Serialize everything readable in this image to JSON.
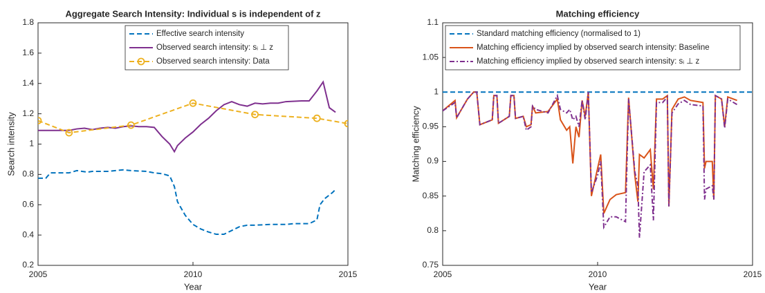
{
  "chart_data": [
    {
      "type": "line",
      "title": "Aggregate Search Intensity: Individual s is independent of z",
      "xlabel": "Year",
      "ylabel": "Search intensity",
      "xlim": [
        2005,
        2015
      ],
      "xticks": [
        2005,
        2010,
        2015
      ],
      "ylim": [
        0.2,
        1.8
      ],
      "yticks": [
        0.2,
        0.4,
        0.6,
        0.8,
        1,
        1.2,
        1.4,
        1.6,
        1.8
      ],
      "grid": false,
      "legend": "north",
      "series": [
        {
          "name": "Effective search intensity",
          "color": "#0072bd",
          "style": "dashed",
          "x": [
            2005,
            2005.25,
            2005.4,
            2006,
            2006.25,
            2006.6,
            2006.75,
            2007,
            2007.25,
            2007.5,
            2007.75,
            2008,
            2008.5,
            2008.75,
            2009,
            2009.25,
            2009.4,
            2009.5,
            2009.75,
            2010,
            2010.25,
            2010.5,
            2010.75,
            2011,
            2011.25,
            2011.5,
            2011.75,
            2012,
            2012.5,
            2013,
            2013.25,
            2013.75,
            2014,
            2014.1,
            2014.25,
            2014.5,
            2014.6
          ],
          "values": [
            0.775,
            0.775,
            0.81,
            0.81,
            0.825,
            0.815,
            0.82,
            0.82,
            0.82,
            0.825,
            0.83,
            0.825,
            0.82,
            0.81,
            0.805,
            0.79,
            0.72,
            0.62,
            0.53,
            0.47,
            0.44,
            0.42,
            0.405,
            0.405,
            0.43,
            0.455,
            0.465,
            0.465,
            0.47,
            0.47,
            0.475,
            0.475,
            0.5,
            0.6,
            0.64,
            0.68,
            0.7
          ]
        },
        {
          "name": "Observed search intensity: sᵢ ⊥ z",
          "color": "#7e2f8e",
          "style": "solid",
          "x": [
            2005,
            2005.5,
            2006,
            2006.25,
            2006.5,
            2006.75,
            2007,
            2007.25,
            2007.5,
            2007.75,
            2008,
            2008.25,
            2008.5,
            2008.75,
            2009,
            2009.25,
            2009.4,
            2009.5,
            2009.75,
            2010,
            2010.25,
            2010.5,
            2010.75,
            2011,
            2011.25,
            2011.5,
            2011.75,
            2012,
            2012.25,
            2012.5,
            2012.75,
            2013,
            2013.5,
            2013.75,
            2014,
            2014.2,
            2014.4,
            2014.6
          ],
          "values": [
            1.09,
            1.09,
            1.09,
            1.1,
            1.105,
            1.095,
            1.105,
            1.11,
            1.105,
            1.115,
            1.12,
            1.115,
            1.115,
            1.11,
            1.05,
            1.0,
            0.95,
            0.99,
            1.04,
            1.08,
            1.13,
            1.17,
            1.22,
            1.26,
            1.28,
            1.26,
            1.25,
            1.27,
            1.265,
            1.27,
            1.27,
            1.28,
            1.285,
            1.285,
            1.35,
            1.41,
            1.24,
            1.21
          ]
        },
        {
          "name": "Observed search intensity: Data",
          "color": "#edb120",
          "style": "dashed",
          "marker": "o",
          "x": [
            2005,
            2006,
            2008,
            2010,
            2012,
            2014,
            2015
          ],
          "values": [
            1.155,
            1.075,
            1.125,
            1.27,
            1.195,
            1.17,
            1.135
          ]
        }
      ]
    },
    {
      "type": "line",
      "title": "Matching efficiency",
      "xlabel": "Year",
      "ylabel": "Matching efficiency",
      "xlim": [
        2005,
        2015
      ],
      "xticks": [
        2005,
        2010,
        2015
      ],
      "ylim": [
        0.75,
        1.1
      ],
      "yticks": [
        0.75,
        0.8,
        0.85,
        0.9,
        0.95,
        1,
        1.05,
        1.1
      ],
      "grid": false,
      "legend": "northwest",
      "series": [
        {
          "name": "Standard matching efficiency (normalised to 1)",
          "color": "#0072bd",
          "style": "dashed",
          "x": [
            2005,
            2015
          ],
          "values": [
            1,
            1
          ]
        },
        {
          "name": "Matching efficiency implied by observed search intensity: Baseline",
          "color": "#d95319",
          "style": "solid",
          "x": [
            2005,
            2005.4,
            2005.45,
            2005.8,
            2006,
            2006.1,
            2006.2,
            2006.6,
            2006.65,
            2006.75,
            2006.8,
            2007.15,
            2007.2,
            2007.3,
            2007.35,
            2007.6,
            2007.7,
            2007.85,
            2007.9,
            2008,
            2008.4,
            2008.7,
            2008.8,
            2009,
            2009.1,
            2009.2,
            2009.3,
            2009.4,
            2009.5,
            2009.6,
            2009.7,
            2009.8,
            2010,
            2010.1,
            2010.2,
            2010.4,
            2010.6,
            2010.9,
            2011,
            2011.2,
            2011.3,
            2011.35,
            2011.5,
            2011.7,
            2011.8,
            2011.9,
            2012.1,
            2012.25,
            2012.3,
            2012.4,
            2012.6,
            2012.8,
            2013,
            2013.4,
            2013.45,
            2013.5,
            2013.7,
            2013.75,
            2013.8,
            2014,
            2014.1,
            2014.2,
            2014.5
          ],
          "values": [
            0.973,
            0.988,
            0.963,
            0.99,
            1,
            1,
            0.953,
            0.96,
            0.995,
            0.995,
            0.955,
            0.965,
            0.995,
            0.995,
            0.962,
            0.965,
            0.95,
            0.953,
            0.98,
            0.97,
            0.972,
            0.99,
            0.96,
            0.945,
            0.95,
            0.897,
            0.95,
            0.935,
            0.988,
            0.965,
            1,
            0.85,
            0.89,
            0.91,
            0.825,
            0.845,
            0.852,
            0.855,
            0.992,
            0.88,
            0.842,
            0.91,
            0.905,
            0.917,
            0.86,
            0.99,
            0.99,
            0.995,
            0.835,
            0.975,
            0.99,
            0.993,
            0.988,
            0.985,
            0.89,
            0.9,
            0.9,
            0.845,
            0.995,
            0.99,
            0.95,
            0.993,
            0.988
          ]
        },
        {
          "name": "Matching efficiency implied by observed search intensity: sᵢ ⊥ z",
          "color": "#7e2f8e",
          "style": "dashdot",
          "x": [
            2005,
            2005.4,
            2005.45,
            2005.8,
            2006,
            2006.1,
            2006.2,
            2006.6,
            2006.65,
            2006.75,
            2006.8,
            2007.15,
            2007.2,
            2007.3,
            2007.35,
            2007.6,
            2007.7,
            2007.85,
            2007.9,
            2008,
            2008.4,
            2008.7,
            2008.8,
            2009,
            2009.1,
            2009.2,
            2009.3,
            2009.4,
            2009.5,
            2009.6,
            2009.7,
            2009.8,
            2010,
            2010.1,
            2010.2,
            2010.4,
            2010.6,
            2010.9,
            2011,
            2011.2,
            2011.3,
            2011.35,
            2011.5,
            2011.7,
            2011.8,
            2011.9,
            2012.1,
            2012.25,
            2012.3,
            2012.4,
            2012.6,
            2012.8,
            2013,
            2013.4,
            2013.45,
            2013.5,
            2013.7,
            2013.75,
            2013.8,
            2014,
            2014.1,
            2014.2,
            2014.5
          ],
          "values": [
            0.973,
            0.985,
            0.963,
            0.99,
            1,
            1,
            0.953,
            0.96,
            0.995,
            0.995,
            0.955,
            0.965,
            0.995,
            0.995,
            0.962,
            0.965,
            0.945,
            0.95,
            0.98,
            0.975,
            0.97,
            0.995,
            0.975,
            0.97,
            0.975,
            0.96,
            0.965,
            0.95,
            0.988,
            0.96,
            1,
            0.855,
            0.88,
            0.9,
            0.805,
            0.82,
            0.82,
            0.813,
            0.99,
            0.885,
            0.865,
            0.79,
            0.885,
            0.895,
            0.815,
            0.985,
            0.985,
            0.993,
            0.835,
            0.97,
            0.983,
            0.988,
            0.982,
            0.98,
            0.845,
            0.86,
            0.865,
            0.845,
            0.995,
            0.99,
            0.948,
            0.99,
            0.982
          ]
        }
      ]
    }
  ]
}
